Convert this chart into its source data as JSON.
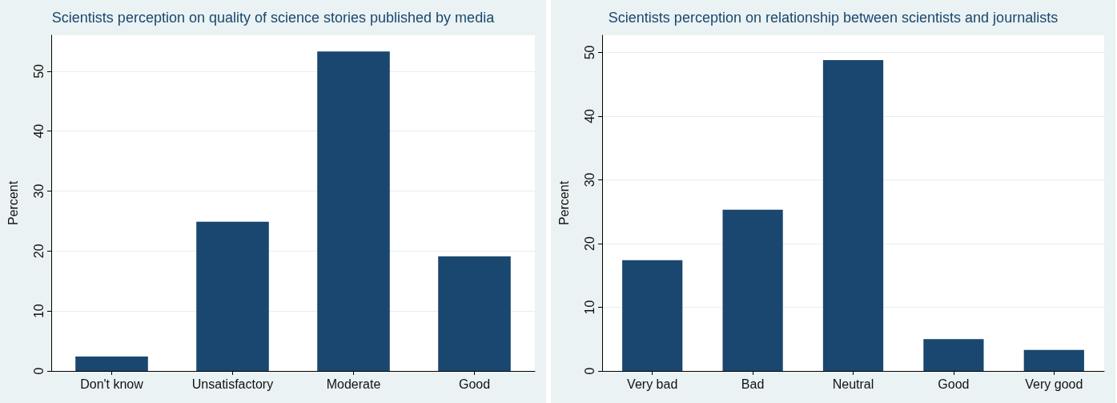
{
  "chart_data": [
    {
      "type": "bar",
      "title": "Scientists perception on quality of science stories published by media",
      "ylabel": "Percent",
      "categories": [
        "Don't know",
        "Unsatisfactory",
        "Moderate",
        "Good"
      ],
      "values": [
        2.4,
        24.9,
        53.3,
        19.1
      ],
      "color": "#1a476f",
      "ylim": [
        0,
        56
      ],
      "yticks": [
        0,
        10,
        20,
        30,
        40,
        50
      ],
      "grid": "y"
    },
    {
      "type": "bar",
      "title": "Scientists perception on relationship between scientists and journalists",
      "ylabel": "Percent",
      "categories": [
        "Very bad",
        "Bad",
        "Neutral",
        "Good",
        "Very good"
      ],
      "values": [
        17.4,
        25.3,
        48.8,
        5.0,
        3.3
      ],
      "color": "#1a476f",
      "ylim": [
        0,
        52.7
      ],
      "yticks": [
        0,
        10,
        20,
        30,
        40,
        50
      ],
      "grid": "y"
    }
  ]
}
